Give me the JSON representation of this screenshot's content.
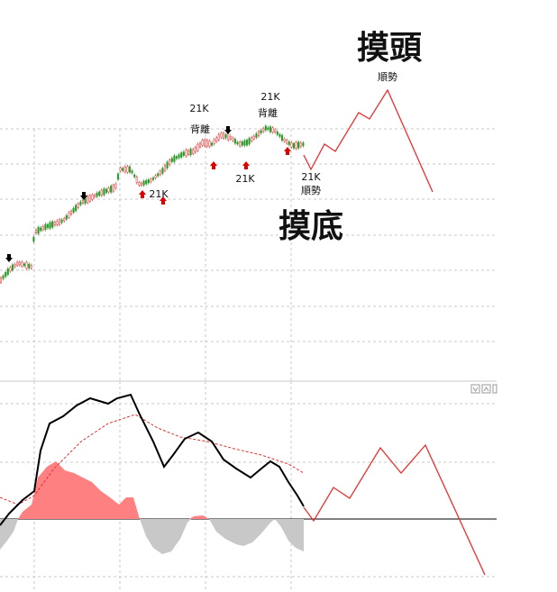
{
  "annotations": {
    "top_title": "摸頭",
    "top_sub": "順勢",
    "bottom_title": "摸底",
    "div1_k": "21K",
    "div1_label": "背離",
    "div2_k": "21K",
    "div2_label": "背離",
    "low1_k": "21K",
    "low2_k": "21K",
    "trend_k": "21K",
    "trend_label": "順勢"
  }
}
